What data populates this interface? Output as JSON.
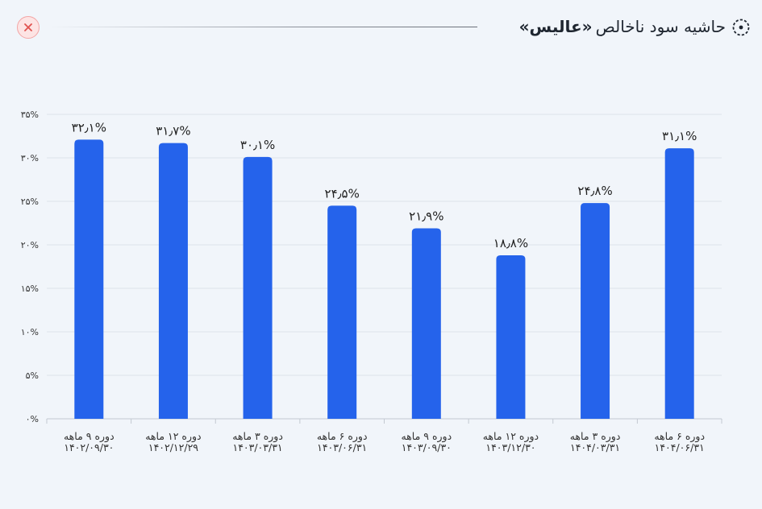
{
  "header": {
    "title_prefix": "حاشیه سود ناخالص",
    "title_stock": "«عالیس»"
  },
  "chart_data": {
    "type": "bar",
    "title": "حاشیه سود ناخالص «عالیس»",
    "categories": [
      [
        "دوره ۹ ماهه",
        "۱۴۰۲/۰۹/۳۰"
      ],
      [
        "دوره ۱۲ ماهه",
        "۱۴۰۲/۱۲/۲۹"
      ],
      [
        "دوره ۳ ماهه",
        "۱۴۰۳/۰۳/۳۱"
      ],
      [
        "دوره ۶ ماهه",
        "۱۴۰۳/۰۶/۳۱"
      ],
      [
        "دوره ۹ ماهه",
        "۱۴۰۳/۰۹/۳۰"
      ],
      [
        "دوره ۱۲ ماهه",
        "۱۴۰۳/۱۲/۳۰"
      ],
      [
        "دوره ۳ ماهه",
        "۱۴۰۴/۰۳/۳۱"
      ],
      [
        "دوره ۶ ماهه",
        "۱۴۰۴/۰۶/۳۱"
      ]
    ],
    "values": [
      32.1,
      31.7,
      30.1,
      24.5,
      21.9,
      18.8,
      24.8,
      31.1
    ],
    "value_labels": [
      "۳۲٫۱%",
      "۳۱٫۷%",
      "۳۰٫۱%",
      "۲۴٫۵%",
      "۲۱٫۹%",
      "۱۸٫۸%",
      "۲۴٫۸%",
      "۳۱٫۱%"
    ],
    "yticks": [
      0,
      5,
      10,
      15,
      20,
      25,
      30,
      35
    ],
    "ytick_labels": [
      "۰%",
      "۵%",
      "۱۰%",
      "۱۵%",
      "۲۰%",
      "۲۵%",
      "۳۰%",
      "۳۵%"
    ],
    "ylim": [
      0,
      35
    ],
    "grid": true,
    "bar_color": "#2563eb",
    "xlabel": "",
    "ylabel": ""
  },
  "colors": {
    "background": "#f1f5fa",
    "close_bg": "#fde4e4",
    "close_stroke": "#e0524f"
  }
}
